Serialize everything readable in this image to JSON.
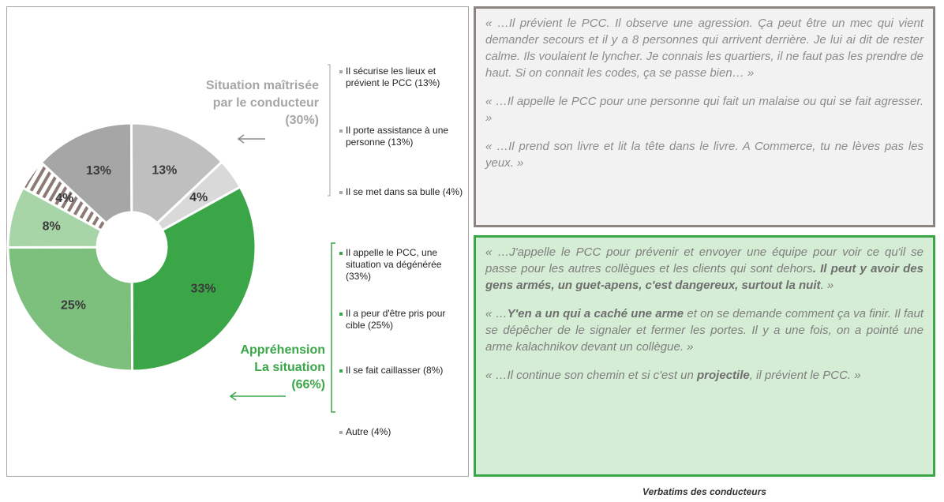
{
  "chart_data": {
    "type": "pie",
    "categories": [
      "Il sécurise les lieux et prévient le PCC (13%)",
      "Il porte assistance à une personne (13%)",
      "Il se met dans sa bulle (4%)",
      "Il appelle le PCC, une situation va dégénérée (33%)",
      "Il a peur d'être pris pour cible (25%)",
      "Il se fait caillasser (8%)",
      "Autre (4%)"
    ],
    "values": [
      13,
      13,
      4,
      33,
      25,
      8,
      4
    ],
    "value_labels": [
      "13%",
      "13%",
      "4%",
      "33%",
      "25%",
      "8%",
      "4%"
    ],
    "colors": [
      "#a6a6a6",
      "#bfbfbf",
      "#d9d9d9",
      "#3aa648",
      "#7dbf7d",
      "#a8d5a8",
      "hatch"
    ]
  },
  "groups": [
    {
      "lines": [
        "Situation maîtrisée",
        "par le conducteur",
        "(30%)"
      ],
      "color": "#a6a6a6"
    },
    {
      "lines": [
        "Appréhension",
        "La situation",
        "(66%)"
      ],
      "color": "#3aa648"
    }
  ],
  "quotes": {
    "grey": [
      [
        {
          "text": "« …Il prévient le PCC. Il observe une agression. Ça peut être un mec qui vient demander secours et il y a 8 personnes qui arrivent derrière. Je lui ai dit de rester calme. Ils voulaient le lyncher. Je connais les quartiers, il ne faut pas les prendre de haut. Si on connait les codes, ça se passe bien… »"
        }
      ],
      [
        {
          "text": "« …Il appelle le PCC pour une personne qui fait un malaise ou qui se fait agresser. »"
        }
      ],
      [
        {
          "text": "« …Il prend son livre et lit la tête dans le livre. A Commerce, tu ne lèves pas les yeux. »"
        }
      ]
    ],
    "green": [
      [
        {
          "text": "« …J'appelle le PCC pour prévenir et envoyer une équipe pour voir ce qu'il se passe pour les autres collègues et les clients qui sont dehors"
        },
        {
          "text": ". Il peut y avoir des gens armés, un guet-apens, c'est dangereux, surtout la nuit",
          "bold": true
        },
        {
          "text": ". »"
        }
      ],
      [
        {
          "text": "« …"
        },
        {
          "text": "Y'en a un qui a caché une arme",
          "bold": true
        },
        {
          "text": " et on se demande comment ça va finir. Il faut se dépêcher de le signaler et fermer les portes. Il y a une fois, on a pointé une arme kalachnikov devant un collègue. »"
        }
      ],
      [
        {
          "text": "« …Il continue son chemin et si c'est un "
        },
        {
          "text": "projectile",
          "bold": true
        },
        {
          "text": ", il prévient le PCC. »"
        }
      ]
    ]
  },
  "caption": "Verbatims des conducteurs"
}
